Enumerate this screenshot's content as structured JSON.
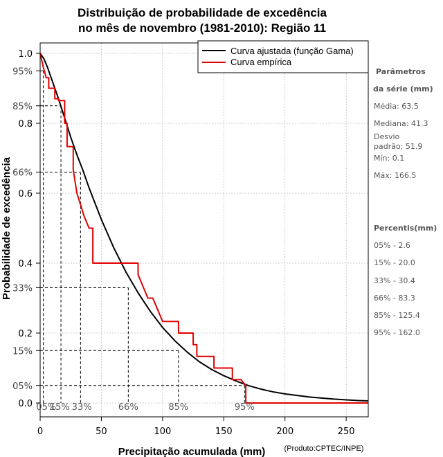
{
  "chart_data": {
    "type": "line",
    "title_line1": "Distribuição de probabilidade de excedência",
    "title_line2": "no mês de novembro (1981-2010): Região 11",
    "xlabel": "Precipitação acumulada (mm)",
    "ylabel": "Probabilidade de excedência",
    "credit": "(Produto:CPTEC/INPE)",
    "xlim": [
      0,
      268
    ],
    "ylim": [
      0,
      1
    ],
    "x_ticks": [
      0,
      50,
      100,
      150,
      200,
      250
    ],
    "y_ticks_left": [
      {
        "value": 1.0,
        "label": "1.0"
      },
      {
        "value": 0.95,
        "label": "95%"
      },
      {
        "value": 0.85,
        "label": "85%"
      },
      {
        "value": 0.8,
        "label": "0.8"
      },
      {
        "value": 0.66,
        "label": "66%"
      },
      {
        "value": 0.6,
        "label": "0.6"
      },
      {
        "value": 0.4,
        "label": "0.4"
      },
      {
        "value": 0.33,
        "label": "33%"
      },
      {
        "value": 0.2,
        "label": "0.2"
      },
      {
        "value": 0.15,
        "label": "15%"
      },
      {
        "value": 0.05,
        "label": "05%"
      },
      {
        "value": 0.0,
        "label": "0.0"
      }
    ],
    "grid": true,
    "legend": [
      {
        "name": "Curva ajustada (função Gama)",
        "color": "#000000"
      },
      {
        "name": "Curva empírica",
        "color": "#e00000"
      }
    ],
    "series": [
      {
        "name": "Curva ajustada (função Gama)",
        "color": "#000000",
        "x": [
          0,
          3,
          6,
          10,
          15,
          20,
          25,
          30,
          35,
          40,
          50,
          60,
          70,
          80,
          90,
          100,
          110,
          120,
          130,
          140,
          150,
          160,
          170,
          180,
          190,
          200,
          220,
          240,
          260,
          268
        ],
        "y": [
          1.0,
          0.985,
          0.96,
          0.92,
          0.87,
          0.815,
          0.76,
          0.71,
          0.665,
          0.615,
          0.525,
          0.445,
          0.375,
          0.315,
          0.262,
          0.216,
          0.178,
          0.146,
          0.118,
          0.096,
          0.078,
          0.063,
          0.05,
          0.04,
          0.032,
          0.026,
          0.017,
          0.011,
          0.007,
          0.006
        ]
      },
      {
        "name": "Curva empírica",
        "color": "#e00000",
        "x": [
          0,
          2.6,
          5,
          7,
          7,
          12,
          12,
          15,
          15,
          20,
          20,
          22,
          22,
          27,
          27,
          30,
          33,
          36,
          40,
          43,
          43,
          80,
          80,
          84,
          88,
          92,
          96,
          100,
          100,
          113,
          113,
          125,
          125,
          128,
          128,
          142,
          142,
          157,
          157,
          164,
          168,
          168,
          268
        ],
        "y": [
          1.0,
          0.96,
          0.93,
          0.93,
          0.9,
          0.9,
          0.87,
          0.87,
          0.865,
          0.865,
          0.8,
          0.8,
          0.733,
          0.733,
          0.667,
          0.6,
          0.567,
          0.533,
          0.5,
          0.5,
          0.4,
          0.4,
          0.367,
          0.333,
          0.3,
          0.3,
          0.267,
          0.233,
          0.233,
          0.233,
          0.2,
          0.2,
          0.167,
          0.167,
          0.133,
          0.133,
          0.1,
          0.1,
          0.067,
          0.067,
          0.05,
          0.0,
          0.0
        ]
      }
    ],
    "percentile_markers": [
      {
        "label": "05%",
        "prob": 0.95,
        "x": 2.6,
        "x_label_pos": 5
      },
      {
        "label": "15%",
        "prob": 0.85,
        "x": 17,
        "x_label_pos": 16
      },
      {
        "label": "33%",
        "prob": 0.66,
        "x": 33,
        "x_label_pos": 34
      },
      {
        "label": "66%",
        "prob": 0.33,
        "x": 72,
        "x_label_pos": 72
      },
      {
        "label": "85%",
        "prob": 0.15,
        "x": 113,
        "x_label_pos": 113
      },
      {
        "label": "95%",
        "prob": 0.05,
        "x": 167,
        "x_label_pos": 167
      }
    ]
  },
  "sidebar": {
    "params_heading_1": "Parâmetros",
    "params_heading_2": "da série (mm)",
    "media": "Média: 63.5",
    "mediana": "Mediana: 41.3",
    "desvio_1": "Desvio",
    "desvio_2": "padrão: 51.9",
    "min": "Mín: 0.1",
    "max": "Máx: 166.5",
    "percentis_heading": "Percentis(mm)",
    "p05": "05% - 2.6",
    "p15": "15% - 20.0",
    "p33": "33% - 30.4",
    "p66": "66% - 83.3",
    "p85": "85% - 125.4",
    "p95": "95% - 162.0"
  }
}
